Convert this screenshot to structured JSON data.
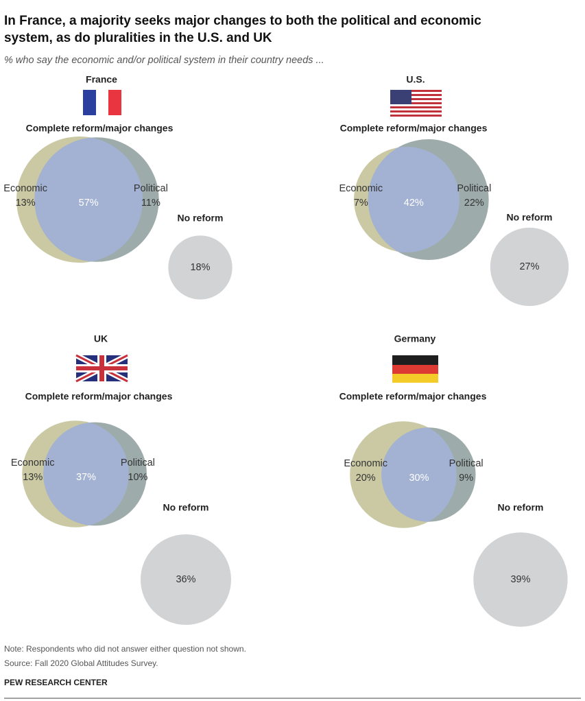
{
  "title": "In France, a majority seeks major changes to both the political and economic system, as do pluralities in the U.S. and UK",
  "title_lines": [
    "In France, a majority seeks major changes to both the political and economic",
    "system, as do pluralities in the U.S. and UK"
  ],
  "subtitle": "% who say the economic and/or political system in their country needs ...",
  "note": "Note: Respondents who did not answer either question not shown.",
  "source": "Source: Fall 2020 Global Attitudes Survey.",
  "credit": "PEW RESEARCH CENTER",
  "chart_data": [
    {
      "type": "venn",
      "title": "France",
      "subtitle": "Complete reform/major changes",
      "categories": [
        "Economic",
        null,
        "Political",
        "No reform"
      ],
      "values": [
        13,
        57,
        11,
        18
      ],
      "value_labels": [
        "13%",
        "57%",
        "11%",
        "18%"
      ],
      "colors": [
        "#cac9a4",
        "#a3b2d3",
        "#9dacaa",
        "#d2d3d5"
      ]
    },
    {
      "type": "venn",
      "title": "U.S.",
      "subtitle": "Complete reform/major changes",
      "categories": [
        "Economic",
        null,
        "Political",
        "No reform"
      ],
      "values": [
        7,
        42,
        22,
        27
      ],
      "value_labels": [
        "7%",
        "42%",
        "22%",
        "27%"
      ],
      "colors": [
        "#cac9a4",
        "#a3b2d3",
        "#9dacaa",
        "#d2d3d5"
      ]
    },
    {
      "type": "venn",
      "title": "UK",
      "subtitle": "Complete reform/major changes",
      "categories": [
        "Economic",
        null,
        "Political",
        "No reform"
      ],
      "values": [
        13,
        37,
        10,
        36
      ],
      "value_labels": [
        "13%",
        "37%",
        "10%",
        "36%"
      ],
      "colors": [
        "#cac9a4",
        "#a3b2d3",
        "#9dacaa",
        "#d2d3d5"
      ]
    },
    {
      "type": "venn",
      "title": "Germany",
      "subtitle": "Complete reform/major changes",
      "categories": [
        "Economic",
        null,
        "Political",
        "No reform"
      ],
      "values": [
        20,
        30,
        9,
        39
      ],
      "value_labels": [
        "20%",
        "30%",
        "9%",
        "39%"
      ],
      "colors": [
        "#cac9a4",
        "#a3b2d3",
        "#9dacaa",
        "#d2d3d5"
      ]
    }
  ]
}
